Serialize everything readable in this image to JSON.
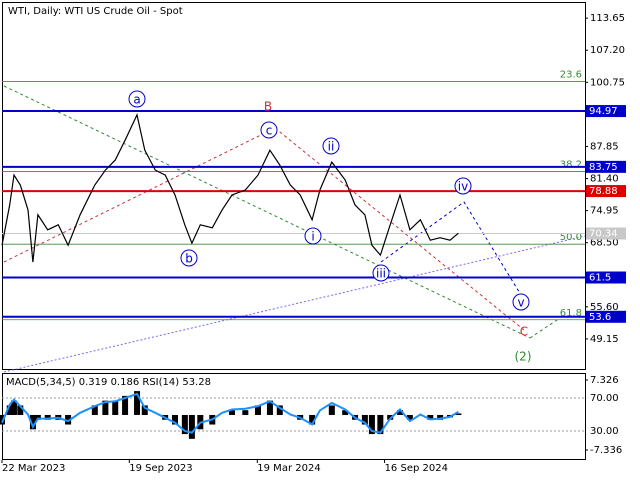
{
  "chart_data": [
    {
      "type": "line",
      "title": "WTI, Daily:  WTI US Crude Oil - Spot",
      "color": "#000000",
      "x": [
        "2023-03-22",
        "2023-04-02",
        "2023-04-08",
        "2023-04-17",
        "2023-04-28",
        "2023-05-05",
        "2023-05-12",
        "2023-05-26",
        "2023-06-10",
        "2023-06-24",
        "2023-07-11",
        "2023-08-01",
        "2023-08-16",
        "2023-08-30",
        "2023-09-13",
        "2023-09-30",
        "2023-10-11",
        "2023-10-26",
        "2023-11-09",
        "2023-11-23",
        "2023-12-07",
        "2023-12-17",
        "2023-12-29",
        "2024-01-15",
        "2024-01-29",
        "2024-02-12",
        "2024-03-02",
        "2024-03-20",
        "2024-04-06",
        "2024-04-20",
        "2024-05-05",
        "2024-05-19",
        "2024-06-05",
        "2024-06-16",
        "2024-07-03",
        "2024-07-22",
        "2024-08-05",
        "2024-08-19",
        "2024-08-29",
        "2024-09-10",
        "2024-09-24",
        "2024-10-08",
        "2024-10-22",
        "2024-11-06",
        "2024-11-20",
        "2024-12-04",
        "2024-12-18",
        "2024-12-30"
      ],
      "values": [
        68.0,
        76.1,
        82.1,
        80.1,
        75.1,
        64.6,
        74.1,
        71.1,
        72.1,
        68.0,
        74.1,
        80.1,
        83.1,
        85.1,
        89.1,
        94.2,
        87.1,
        83.1,
        82.1,
        78.1,
        72.1,
        68.4,
        72.1,
        71.5,
        75.1,
        78.1,
        79.1,
        82.1,
        87.1,
        84.1,
        80.1,
        78.1,
        73.1,
        79.1,
        84.7,
        81.1,
        76.1,
        74.1,
        68.0,
        66.0,
        72.1,
        78.1,
        71.1,
        73.1,
        69.0,
        69.5,
        69.0,
        70.4
      ],
      "xlim": [
        "2023-03-22",
        "2025-06-28"
      ],
      "xticks": [
        {
          "value": "2023-03-22",
          "label": "22 Mar 2023"
        },
        {
          "value": "2023-09-19",
          "label": "19 Sep 2023"
        },
        {
          "value": "2024-03-19",
          "label": "19 Mar 2024"
        },
        {
          "value": "2024-09-16",
          "label": "16 Sep 2024"
        }
      ],
      "ylim": [
        42.9,
        116.9
      ],
      "yticks": [
        {
          "value": 113.65,
          "label": "113.65"
        },
        {
          "value": 107.2,
          "label": "107.20"
        },
        {
          "value": 100.75,
          "label": "100.75"
        },
        {
          "value": 87.85,
          "label": "87.85"
        },
        {
          "value": 81.4,
          "label": "81.40"
        },
        {
          "value": 74.95,
          "label": "74.95"
        },
        {
          "value": 68.5,
          "label": "68.50"
        },
        {
          "value": 55.6,
          "label": "55.60"
        },
        {
          "value": 49.15,
          "label": "49.15"
        }
      ],
      "levels": [
        {
          "value": 94.97,
          "color": "#0000cc"
        },
        {
          "value": 83.75,
          "color": "#0000cc"
        },
        {
          "value": 78.88,
          "color": "#dd0000"
        },
        {
          "value": 70.34,
          "color": "#c8c8c8"
        },
        {
          "value": 61.5,
          "color": "#0000cc"
        },
        {
          "value": 53.6,
          "color": "#0000cc"
        }
      ],
      "fibo": [
        {
          "value": 100.9,
          "label": "23.6"
        },
        {
          "value": 82.8,
          "label": "38.2"
        },
        {
          "value": 68.2,
          "label": "50.0"
        },
        {
          "value": 53.0,
          "label": "61.8"
        }
      ],
      "waves": [
        "a",
        "b",
        "c",
        "B",
        "i",
        "ii",
        "iii",
        "iv",
        "v",
        "C",
        "(2)"
      ]
    },
    {
      "type": "bar",
      "label": "MACD(5,34,5) 0.319 0.186 RSI(14) 53.28",
      "color": "#000000",
      "values": [
        -2,
        2,
        3,
        2,
        0,
        -3,
        -1,
        -1,
        -1,
        -2,
        0,
        2,
        3,
        3,
        4,
        5,
        2,
        0,
        -1,
        -2,
        -4,
        -5,
        -3,
        -2,
        0,
        1,
        1,
        2,
        3,
        2,
        0,
        -1,
        -2,
        0,
        2,
        1,
        -1,
        -2,
        -4,
        -4,
        -1,
        1,
        -1,
        0,
        -1,
        -1,
        -0.5,
        0.319
      ],
      "ylim": [
        -9.43,
        9.0
      ],
      "yticks": [
        {
          "value": 7.326,
          "label": "7.326"
        },
        {
          "value": -7.336,
          "label": "-7.336"
        }
      ],
      "rsi": {
        "color": "#1e90ff",
        "values": [
          40,
          62,
          68,
          60,
          50,
          35,
          45,
          45,
          46,
          42,
          52,
          60,
          65,
          66,
          70,
          75,
          58,
          52,
          46,
          40,
          30,
          28,
          40,
          44,
          52,
          56,
          57,
          60,
          66,
          58,
          50,
          46,
          38,
          55,
          64,
          56,
          46,
          40,
          30,
          28,
          45,
          56,
          42,
          50,
          44,
          45,
          47,
          53.28
        ],
        "ylim": [
          -5.2,
          101.5
        ],
        "yticks": [
          {
            "value": 70,
            "label": "70.00"
          },
          {
            "value": 30,
            "label": "30.00"
          }
        ]
      }
    }
  ]
}
